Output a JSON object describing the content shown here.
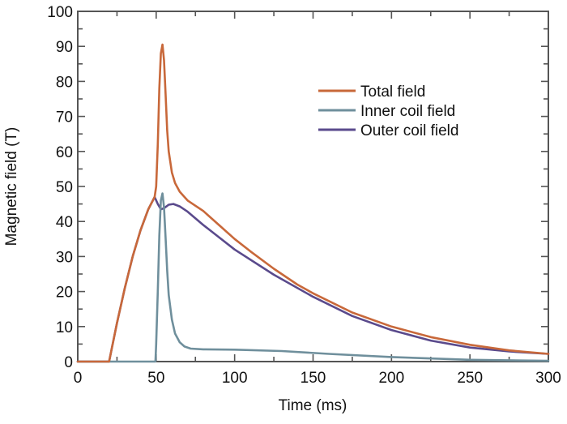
{
  "chart_data": {
    "type": "line",
    "title": "",
    "xlabel": "Time (ms)",
    "ylabel": "Magnetic field (T)",
    "xlim": [
      0,
      300
    ],
    "ylim": [
      0,
      100
    ],
    "xticks": [
      0,
      50,
      100,
      150,
      200,
      250,
      300
    ],
    "yticks": [
      0,
      10,
      20,
      30,
      40,
      50,
      60,
      70,
      80,
      90,
      100
    ],
    "xtick_labels": [
      "0",
      "50",
      "100",
      "150",
      "200",
      "250",
      "300"
    ],
    "ytick_labels": [
      "0",
      "10",
      "20",
      "30",
      "40",
      "50",
      "60",
      "70",
      "80",
      "90",
      "100"
    ],
    "grid": false,
    "legend_position": "top-right",
    "series": [
      {
        "name": "Total field",
        "color": "#c8683a",
        "x": [
          0,
          20,
          25,
          30,
          35,
          40,
          45,
          49,
          50,
          51,
          52,
          53,
          54,
          55,
          56,
          57,
          58,
          60,
          62,
          65,
          70,
          75,
          80,
          90,
          100,
          110,
          125,
          140,
          150,
          175,
          200,
          225,
          250,
          275,
          300
        ],
        "y": [
          0,
          0,
          11,
          21,
          30,
          37.5,
          43.5,
          47,
          50,
          62,
          78,
          88,
          90.5,
          86,
          76,
          66,
          60,
          54,
          51,
          48.5,
          46,
          44.5,
          43,
          39,
          35,
          31.5,
          26.5,
          22,
          19.5,
          14,
          10,
          7,
          4.8,
          3.2,
          2.2
        ]
      },
      {
        "name": "Inner coil field",
        "color": "#6f8f9c",
        "x": [
          0,
          49.5,
          50,
          51,
          52,
          53,
          54,
          55,
          56,
          57,
          58,
          60,
          62,
          65,
          68,
          72,
          80,
          100,
          130,
          160,
          200,
          250,
          300
        ],
        "y": [
          0,
          0,
          5,
          20,
          36,
          46,
          48,
          44,
          35,
          26,
          19,
          12,
          8,
          5.5,
          4.3,
          3.7,
          3.5,
          3.4,
          3,
          2.2,
          1.3,
          0.5,
          0.2
        ]
      },
      {
        "name": "Outer coil field",
        "color": "#5a4a8c",
        "x": [
          0,
          20,
          25,
          30,
          35,
          40,
          45,
          49,
          51,
          53,
          55,
          58,
          61,
          65,
          70,
          80,
          90,
          100,
          125,
          150,
          175,
          200,
          225,
          250,
          275,
          300
        ],
        "y": [
          0,
          0,
          11,
          21,
          30,
          37.5,
          43.5,
          47,
          45,
          43.5,
          43.8,
          44.8,
          45,
          44.3,
          42.8,
          39,
          35.5,
          32,
          24.8,
          18.5,
          13,
          9,
          6,
          4,
          2.9,
          2.2
        ]
      }
    ]
  }
}
